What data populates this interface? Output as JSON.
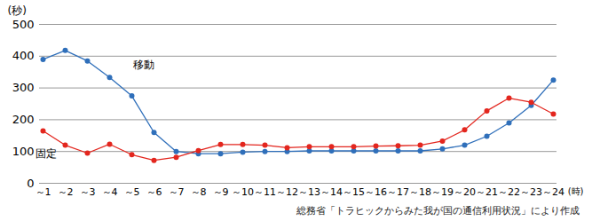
{
  "chart_data": {
    "type": "line",
    "ylabel": "(秒)",
    "xlabel": "(時)",
    "source": "総務省「トラヒックからみた我が国の通信利用状況」により作成",
    "categories": [
      "～1",
      "～2",
      "～3",
      "～4",
      "～5",
      "～6",
      "～7",
      "～8",
      "～9",
      "～10",
      "～11",
      "～12",
      "～13",
      "～14",
      "～15",
      "～16",
      "～17",
      "～18",
      "～19",
      "～20",
      "～21",
      "～22",
      "～23",
      "～24"
    ],
    "series": [
      {
        "name": "移動",
        "color": "#2f6fba",
        "marker": "circle",
        "values": [
          390,
          418,
          385,
          333,
          275,
          160,
          100,
          93,
          93,
          98,
          100,
          100,
          102,
          102,
          102,
          102,
          102,
          102,
          108,
          120,
          148,
          190,
          245,
          325
        ]
      },
      {
        "name": "固定",
        "color": "#e3261e",
        "marker": "circle",
        "values": [
          165,
          120,
          95,
          123,
          90,
          72,
          82,
          103,
          122,
          122,
          120,
          112,
          115,
          115,
          115,
          117,
          118,
          120,
          133,
          168,
          228,
          268,
          255,
          218
        ]
      }
    ],
    "ylim": [
      0,
      500
    ],
    "yticks": [
      0,
      100,
      200,
      300,
      400,
      500
    ],
    "grid": true
  }
}
